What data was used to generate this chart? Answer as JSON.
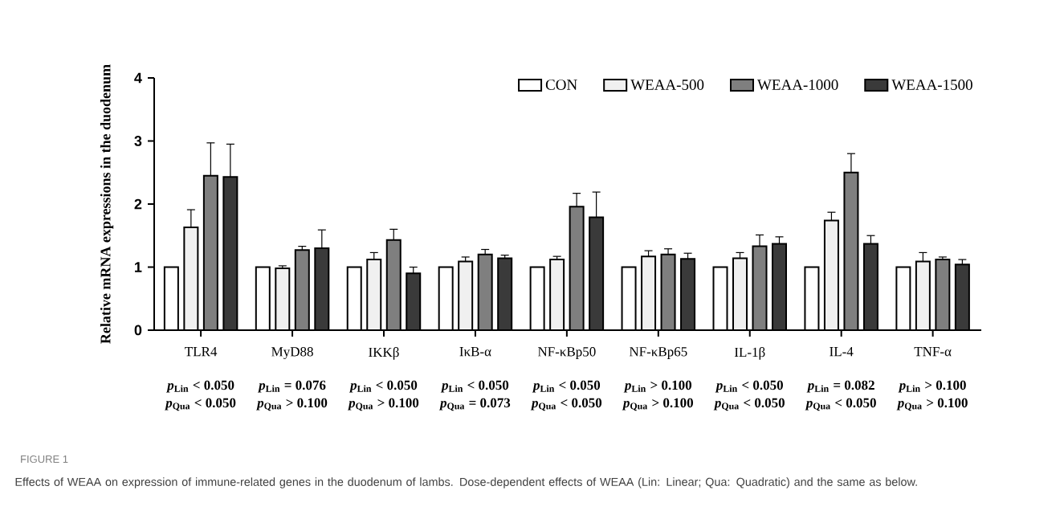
{
  "chart_data": {
    "type": "bar",
    "ylabel": "Relative mRNA expressions in the duodenum",
    "categories": [
      "TLR4",
      "MyD88",
      "IKKβ",
      "IκB-α",
      "NF-κBp50",
      "NF-κBp65",
      "IL-1β",
      "IL-4",
      "TNF-α"
    ],
    "series": [
      {
        "name": "CON",
        "color": "#ffffff",
        "values": [
          1,
          1,
          1,
          1,
          1,
          1,
          1,
          1,
          1
        ],
        "errors": [
          null,
          null,
          null,
          null,
          null,
          null,
          null,
          null,
          null
        ]
      },
      {
        "name": "WEAA-500",
        "color": "#f0f0f0",
        "values": [
          1.63,
          0.98,
          1.12,
          1.09,
          1.12,
          1.17,
          1.14,
          1.74,
          1.09
        ],
        "errors": [
          0.28,
          0.04,
          0.11,
          0.07,
          0.05,
          0.09,
          0.09,
          0.13,
          0.14
        ]
      },
      {
        "name": "WEAA-1000",
        "color": "#7f7f7f",
        "values": [
          2.45,
          1.27,
          1.43,
          1.2,
          1.96,
          1.2,
          1.33,
          2.5,
          1.12
        ],
        "errors": [
          0.52,
          0.06,
          0.17,
          0.08,
          0.21,
          0.09,
          0.18,
          0.3,
          0.04
        ]
      },
      {
        "name": "WEAA-1500",
        "color": "#3a3a3a",
        "values": [
          2.43,
          1.3,
          0.9,
          1.14,
          1.79,
          1.13,
          1.37,
          1.37,
          1.04
        ],
        "errors": [
          0.52,
          0.29,
          0.1,
          0.05,
          0.4,
          0.09,
          0.11,
          0.13,
          0.08
        ]
      }
    ],
    "ylim": [
      0,
      4
    ],
    "yticks": [
      0,
      1,
      2,
      3,
      4
    ],
    "legend": "top right",
    "annotations": [
      "*p*$_{Lin}$ < 0.050",
      "*p*$_{Qua}$ < 0.050",
      "*p*$_{Lin}$ = 0.076",
      "*p*$_{Qua}$ > 0.100",
      "*p*$_{Lin}$ < 0.050",
      "*p*$_{Qua}$ > 0.100",
      "*p*$_{Lin}$ < 0.050",
      "*p*$_{Qua}$ = 0.073",
      "*p*$_{Lin}$ < 0.050",
      "*p*$_{Qua}$ < 0.050",
      "*p*$_{Lin}$ > 0.100",
      "*p*$_{Qua}$ > 0.100",
      "*p*$_{Lin}$ < 0.050",
      "*p*$_{Qua}$ < 0.050",
      "*p*$_{Lin}$ = 0.082",
      "*p*$_{Qua}$ < 0.050",
      "*p*$_{Lin}$ > 0.100",
      "*p*$_{Qua}$ > 0.100",
      "FIGURE 1",
      "Effects of WEAA on expression of immune-related genes in the duodenum of lambs. Dose-dependent effects of WEAA (Lin: Linear; Qua: Quadratic) and the same as below."
    ]
  }
}
